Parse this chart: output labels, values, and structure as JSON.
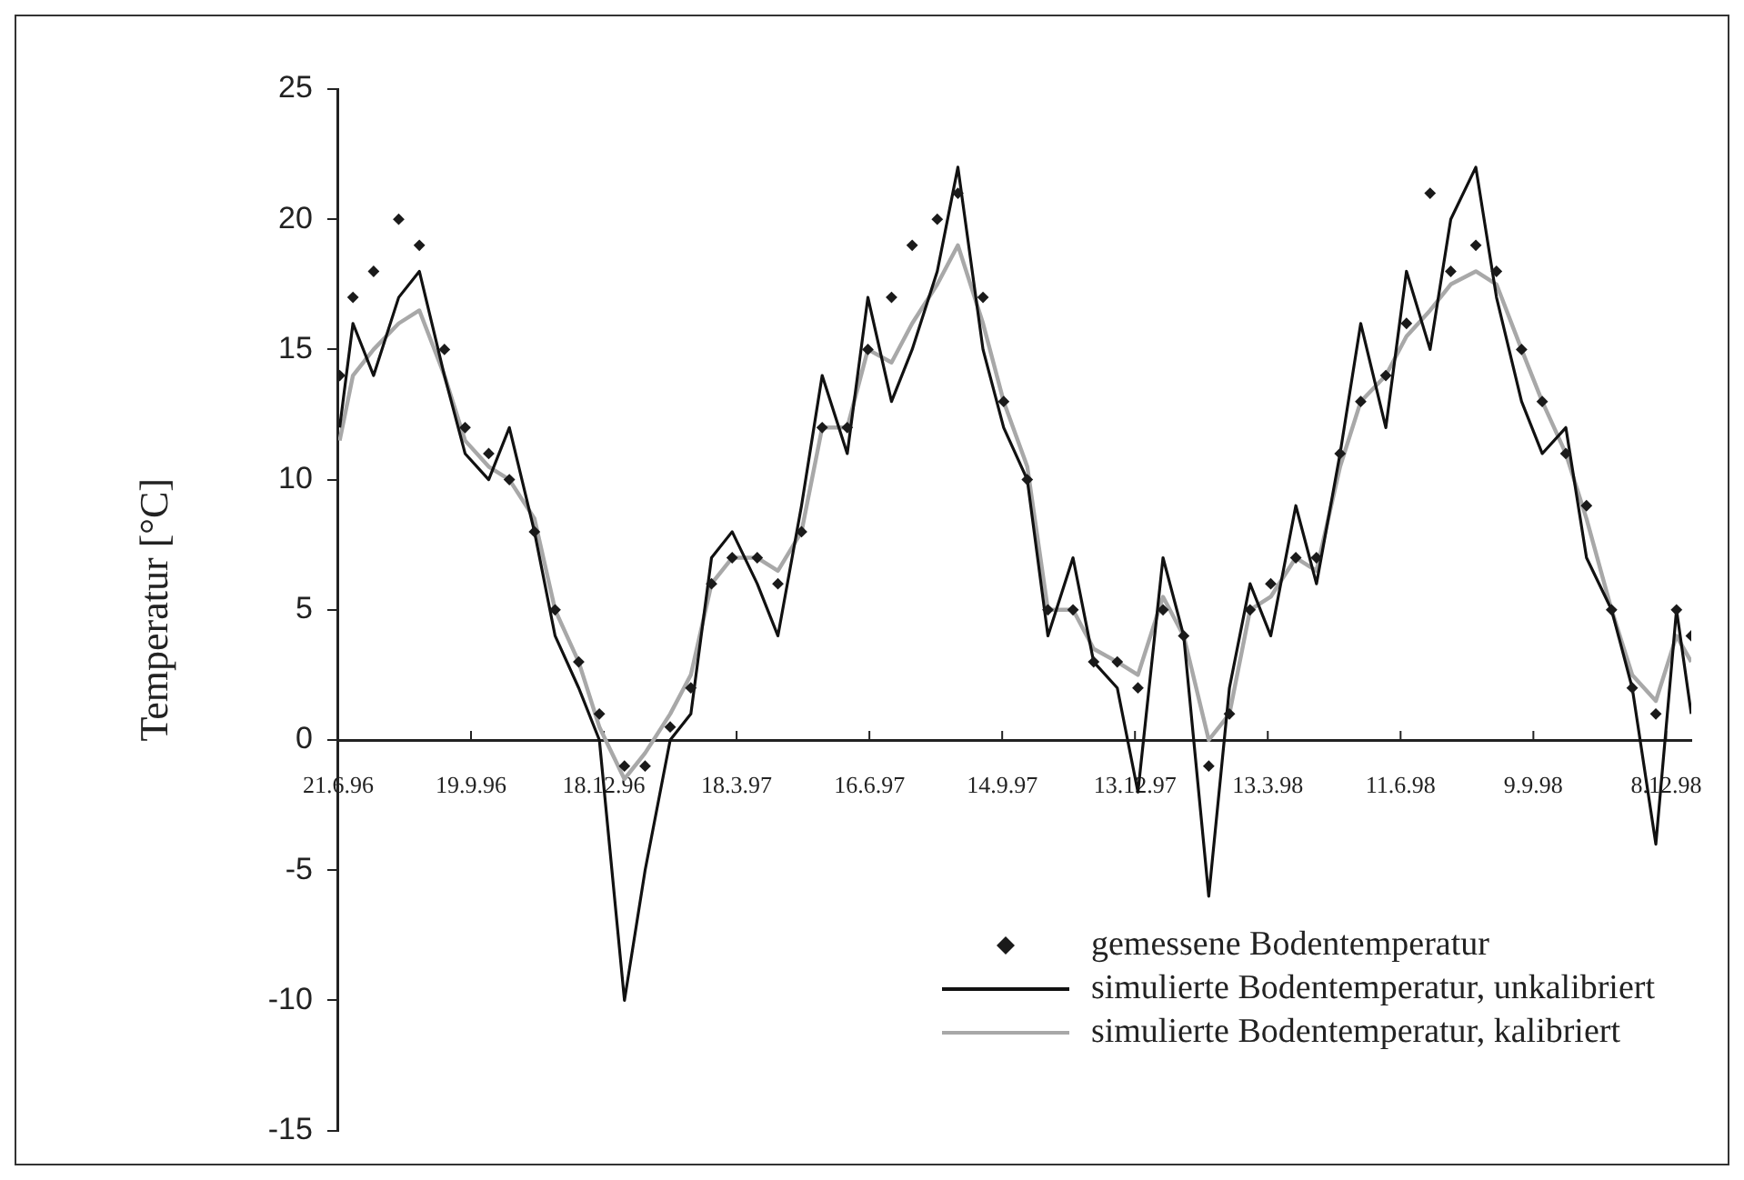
{
  "chart_data": {
    "type": "line",
    "ylabel": "Temperatur [°C]",
    "legend": "bottom right",
    "x": [
      "1996-06-22",
      "1996-07-01",
      "1996-07-15",
      "1996-08-01",
      "1996-08-15",
      "1996-09-01",
      "1996-09-15",
      "1996-10-01",
      "1996-10-15",
      "1996-11-01",
      "1996-11-15",
      "1996-12-01",
      "1996-12-15",
      "1997-01-01",
      "1997-01-15",
      "1997-02-01",
      "1997-02-15",
      "1997-03-01",
      "1997-03-15",
      "1997-04-01",
      "1997-04-15",
      "1997-05-01",
      "1997-05-15",
      "1997-06-01",
      "1997-06-15",
      "1997-07-01",
      "1997-07-15",
      "1997-08-01",
      "1997-08-15",
      "1997-09-01",
      "1997-09-15",
      "1997-10-01",
      "1997-10-15",
      "1997-11-01",
      "1997-11-15",
      "1997-12-01",
      "1997-12-15",
      "1998-01-01",
      "1998-01-15",
      "1998-02-01",
      "1998-02-15",
      "1998-03-01",
      "1998-03-15",
      "1998-04-01",
      "1998-04-15",
      "1998-05-01",
      "1998-05-15",
      "1998-06-01",
      "1998-06-15",
      "1998-07-01",
      "1998-07-15",
      "1998-08-01",
      "1998-08-15",
      "1998-09-01",
      "1998-09-15",
      "1998-10-01",
      "1998-10-15",
      "1998-11-01",
      "1998-11-15",
      "1998-12-01",
      "1998-12-15",
      "1998-12-25"
    ],
    "series": [
      {
        "name": "simulierte Bodentemperatur, kalibriert",
        "type": "line",
        "color": "#a8a8a8",
        "values": [
          11.5,
          14,
          15,
          16,
          16.5,
          14,
          11.5,
          10.5,
          10,
          8.5,
          5,
          3,
          0.5,
          -1.5,
          -0.5,
          1,
          2.5,
          6,
          7,
          7,
          6.5,
          8,
          12,
          12,
          15,
          14.5,
          16,
          17.5,
          19,
          16,
          13,
          10.5,
          5,
          5,
          3.5,
          3,
          2.5,
          5.5,
          4,
          0,
          1,
          5,
          5.5,
          7,
          6.5,
          10.5,
          13,
          14,
          15.5,
          16.5,
          17.5,
          18,
          17.5,
          15,
          13,
          11,
          8.5,
          5,
          2.5,
          1.5,
          4,
          3
        ]
      },
      {
        "name": "simulierte Bodentemperatur, unkalibriert",
        "type": "line",
        "color": "#111111",
        "values": [
          12,
          16,
          14,
          17,
          18,
          14,
          11,
          10,
          12,
          8,
          4,
          2,
          0,
          -10,
          -5,
          0,
          1,
          7,
          8,
          6,
          4,
          9,
          14,
          11,
          17,
          13,
          15,
          18,
          22,
          15,
          12,
          10,
          4,
          7,
          3,
          2,
          -2,
          7,
          4,
          -6,
          2,
          6,
          4,
          9,
          6,
          11,
          16,
          12,
          18,
          15,
          20,
          22,
          17,
          13,
          11,
          12,
          7,
          5,
          2,
          -4,
          5,
          1
        ]
      },
      {
        "name": "gemessene Bodentemperatur",
        "type": "scatter",
        "marker": "diamond",
        "color": "#1a1a1a",
        "values": [
          14,
          17,
          18,
          20,
          19,
          15,
          12,
          11,
          10,
          8,
          5,
          3,
          1,
          -1,
          -1,
          0.5,
          2,
          6,
          7,
          7,
          6,
          8,
          12,
          12,
          15,
          17,
          19,
          20,
          21,
          17,
          13,
          10,
          5,
          5,
          3,
          3,
          2,
          5,
          4,
          -1,
          1,
          5,
          6,
          7,
          7,
          11,
          13,
          14,
          16,
          21,
          18,
          19,
          18,
          15,
          13,
          11,
          9,
          5,
          2,
          1,
          5,
          4
        ]
      }
    ],
    "xlim": [
      "1996-06-21",
      "1998-12-25"
    ],
    "xticks": [
      {
        "value": "1996-06-21",
        "label": "21.6.96"
      },
      {
        "value": "1996-09-19",
        "label": "19.9.96"
      },
      {
        "value": "1996-12-18",
        "label": "18.12.96"
      },
      {
        "value": "1997-03-18",
        "label": "18.3.97"
      },
      {
        "value": "1997-06-16",
        "label": "16.6.97"
      },
      {
        "value": "1997-09-14",
        "label": "14.9.97"
      },
      {
        "value": "1997-12-13",
        "label": "13.12.97"
      },
      {
        "value": "1998-03-13",
        "label": "13.3.98"
      },
      {
        "value": "1998-06-11",
        "label": "11.6.98"
      },
      {
        "value": "1998-09-09",
        "label": "9.9.98"
      },
      {
        "value": "1998-12-08",
        "label": "8.12.98"
      }
    ],
    "ylim": [
      -15,
      25
    ],
    "yticks": [
      -15,
      -10,
      -5,
      0,
      5,
      10,
      15,
      20,
      25
    ]
  }
}
